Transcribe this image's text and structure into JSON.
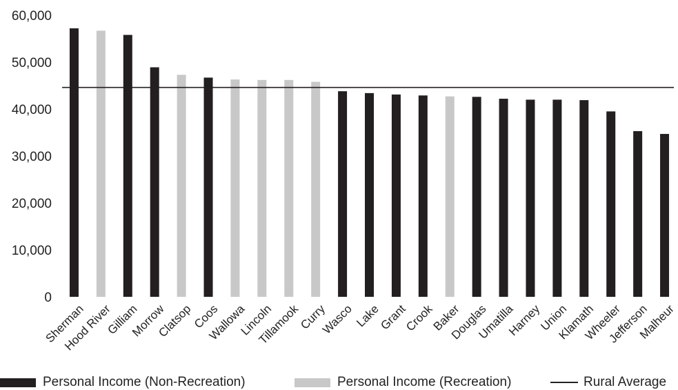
{
  "chart_data": {
    "type": "bar",
    "categories": [
      "Sherman",
      "Hood River",
      "Gilliam",
      "Morrow",
      "Clatsop",
      "Coos",
      "Wallowa",
      "Lincoln",
      "Tillamook",
      "Curry",
      "Wasco",
      "Lake",
      "Grant",
      "Crook",
      "Baker",
      "Douglas",
      "Umatilla",
      "Harney",
      "Union",
      "Klamath",
      "Wheeler",
      "Jefferson",
      "Malheur"
    ],
    "values": [
      57200,
      56700,
      55800,
      48900,
      47300,
      46700,
      46300,
      46200,
      46200,
      45800,
      43800,
      43400,
      43100,
      42900,
      42700,
      42600,
      42200,
      42000,
      42000,
      41900,
      39500,
      35300,
      34700
    ],
    "recreation": [
      false,
      true,
      false,
      false,
      true,
      false,
      true,
      true,
      true,
      true,
      false,
      false,
      false,
      false,
      true,
      false,
      false,
      false,
      false,
      false,
      false,
      false,
      false
    ],
    "rural_average": 44600,
    "ylim": [
      0,
      60000
    ],
    "yticks": [
      0,
      10000,
      20000,
      30000,
      40000,
      50000,
      60000
    ],
    "ytick_labels": [
      "0",
      "10,000",
      "20,000",
      "30,000",
      "40,000",
      "50,000",
      "60,000"
    ],
    "colors": {
      "non_recreation": "#231f20",
      "recreation": "#c8c8c8",
      "average_line": "#231f20"
    },
    "grid": false,
    "legend_position": "bottom",
    "legend": {
      "non_recreation": "Personal Income (Non-Recreation)",
      "recreation": "Personal Income (Recreation)",
      "average": "Rural Average"
    }
  }
}
